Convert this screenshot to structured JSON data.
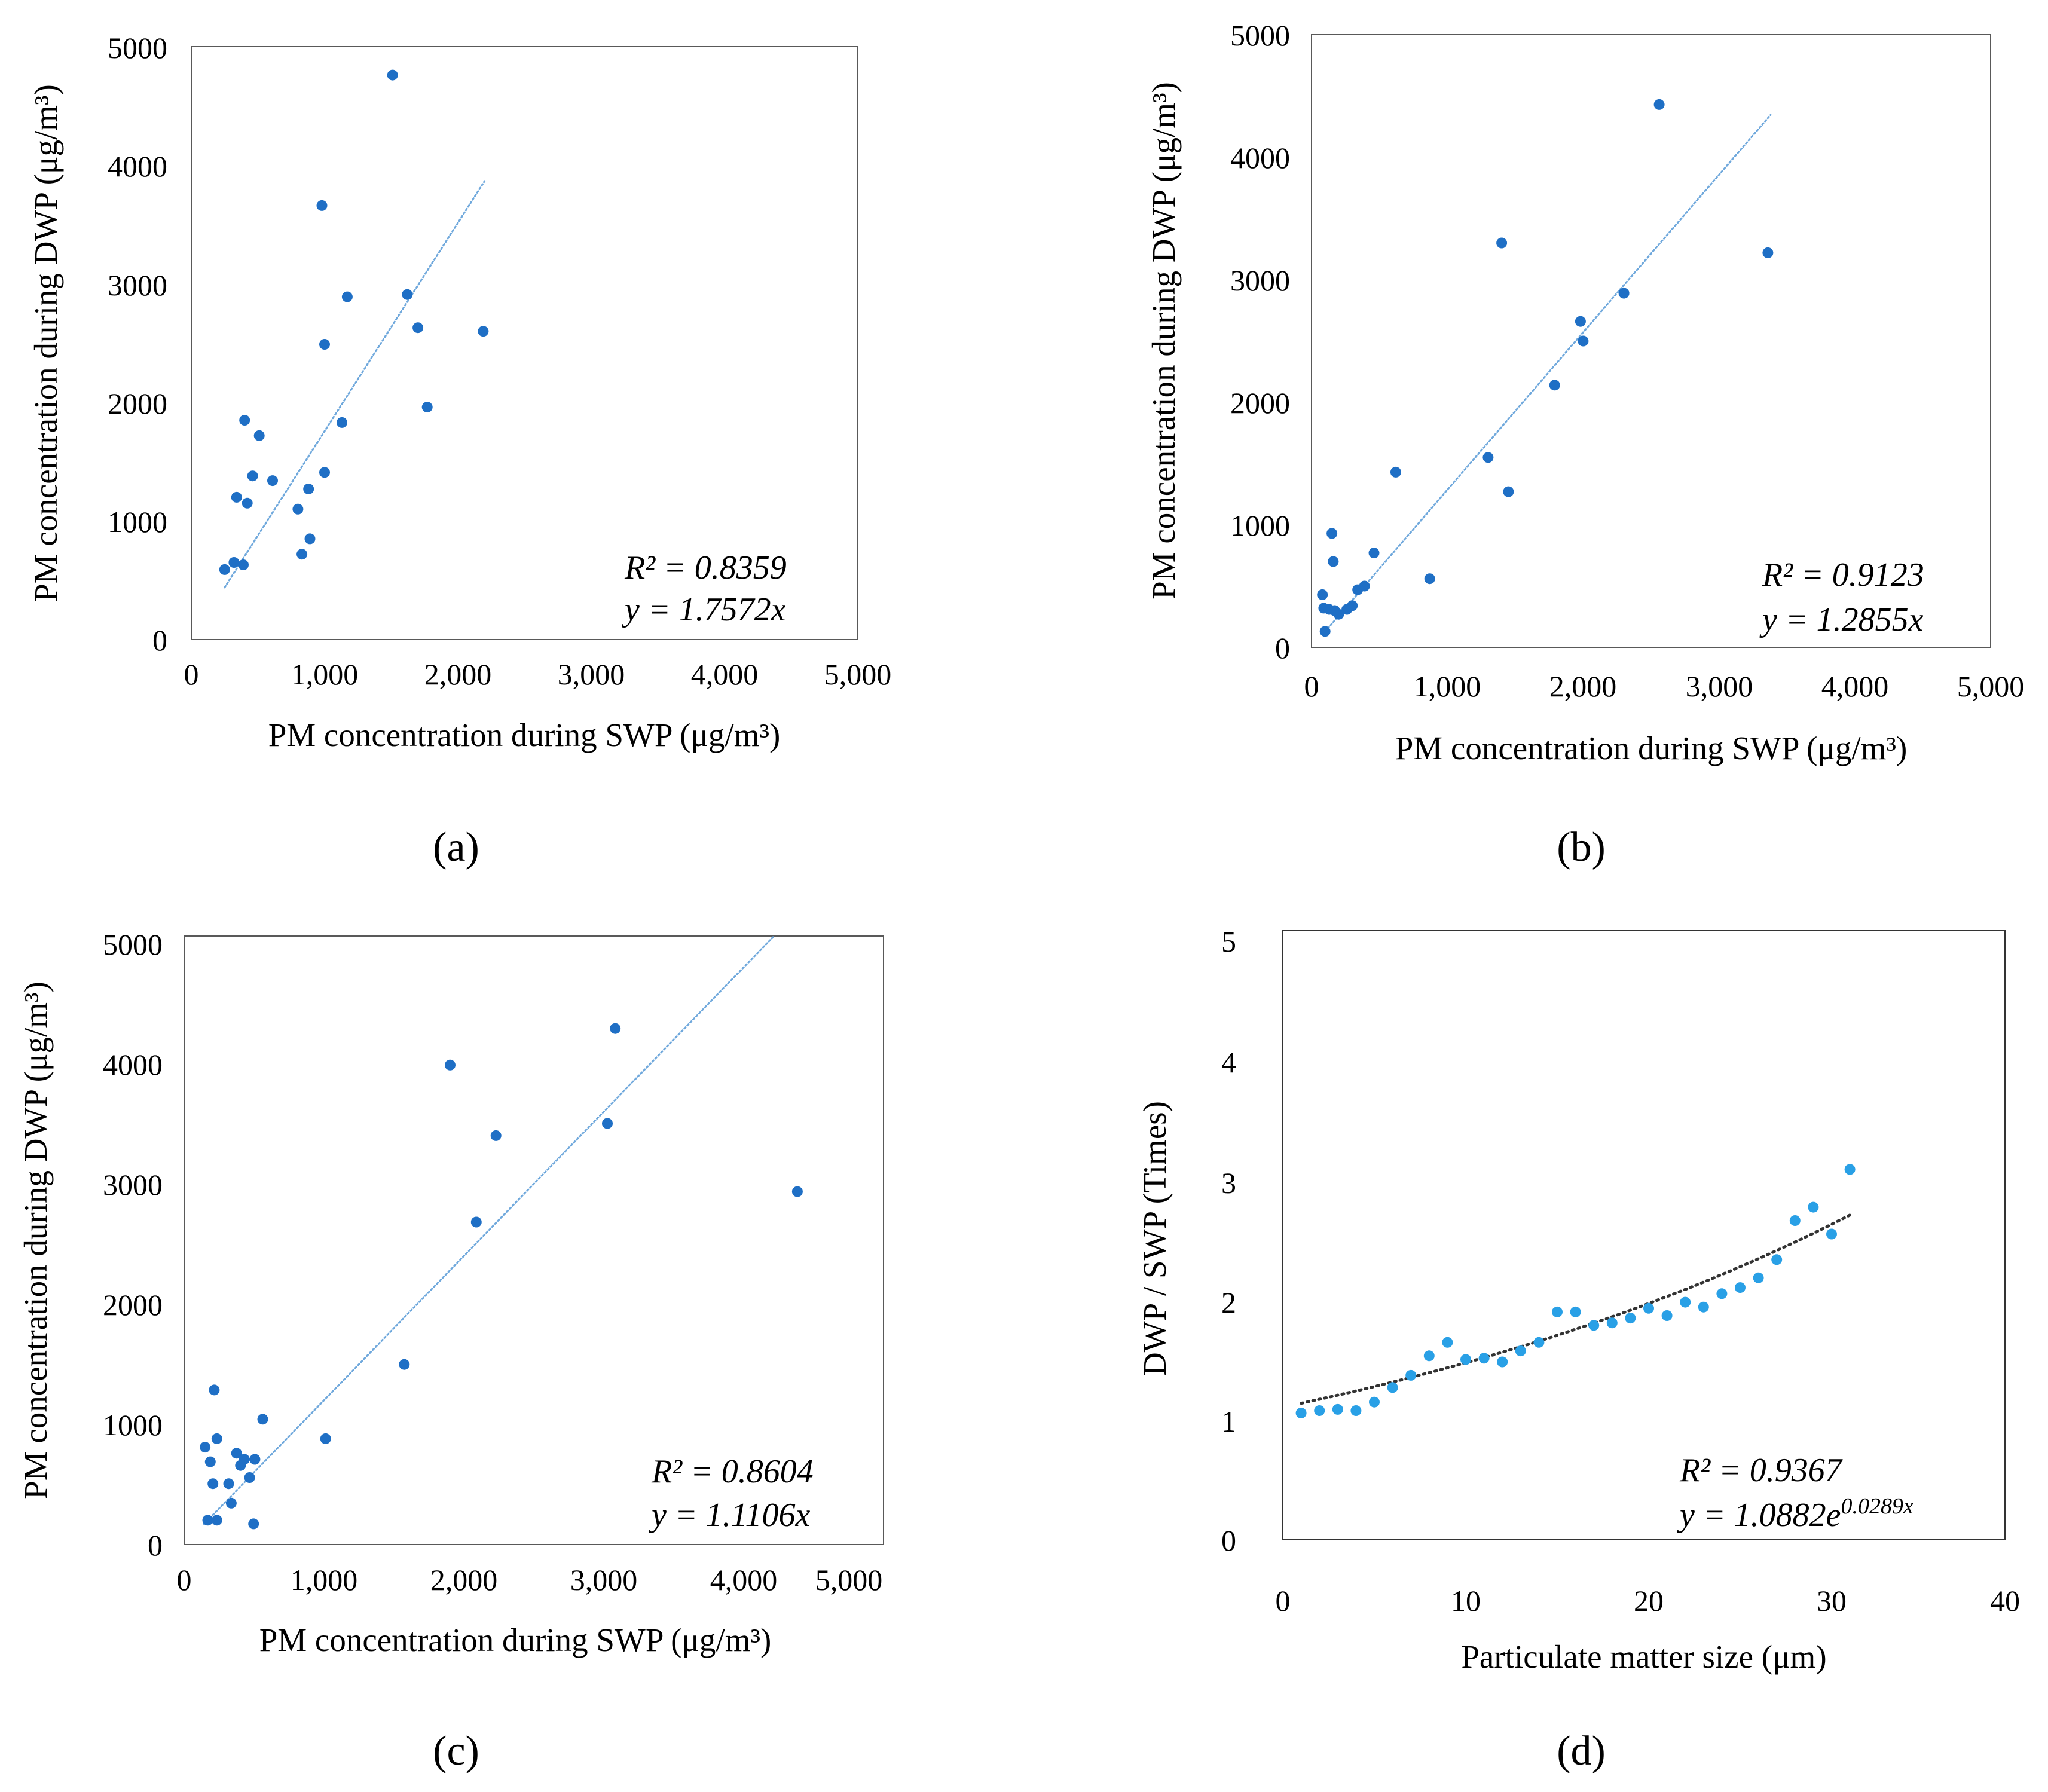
{
  "colors": {
    "points": "#1f6fc5",
    "trend_abcd": "#6fa8dc",
    "trend_d": "#333333",
    "points_d": "#29a0e6",
    "frame": "#595959"
  },
  "chart_data": [
    {
      "type": "scatter",
      "panel_label": "(a)",
      "xlabel": "PM concentration during SWP (μg/m³)",
      "ylabel": "PM concentration during DWP (μg/m³)",
      "xlim": [
        0,
        5000
      ],
      "ylim": [
        0,
        5000
      ],
      "xticks": [
        "0",
        "1,000",
        "2,000",
        "3,000",
        "4,000",
        "5,000"
      ],
      "yticks": [
        "0",
        "1000",
        "2000",
        "3000",
        "4000",
        "5000"
      ],
      "points": [
        [
          250,
          590
        ],
        [
          320,
          650
        ],
        [
          390,
          630
        ],
        [
          340,
          1200
        ],
        [
          420,
          1150
        ],
        [
          400,
          1850
        ],
        [
          460,
          1380
        ],
        [
          510,
          1720
        ],
        [
          610,
          1340
        ],
        [
          800,
          1100
        ],
        [
          830,
          720
        ],
        [
          880,
          1270
        ],
        [
          890,
          850
        ],
        [
          980,
          3660
        ],
        [
          1000,
          2490
        ],
        [
          1000,
          1410
        ],
        [
          1130,
          1830
        ],
        [
          1170,
          2890
        ],
        [
          1510,
          4760
        ],
        [
          1620,
          2910
        ],
        [
          1700,
          2630
        ],
        [
          1770,
          1960
        ],
        [
          2190,
          2600
        ]
      ],
      "trendline": {
        "kind": "linear",
        "slope": 1.7572,
        "x_range": [
          250,
          2200
        ]
      },
      "equation": {
        "r2": "R² = 0.8359",
        "fit": "y = 1.7572x"
      },
      "grid": false
    },
    {
      "type": "scatter",
      "panel_label": "(b)",
      "xlabel": "PM concentration during SWP (μg/m³)",
      "ylabel": "PM concentration during DWP (μg/m³)",
      "xlim": [
        0,
        5000
      ],
      "ylim": [
        0,
        5000
      ],
      "xticks": [
        "0",
        "1,000",
        "2,000",
        "3,000",
        "4,000",
        "5,000"
      ],
      "yticks": [
        "0",
        "1000",
        "2000",
        "3000",
        "4000",
        "5000"
      ],
      "points": [
        [
          80,
          430
        ],
        [
          90,
          320
        ],
        [
          100,
          130
        ],
        [
          130,
          310
        ],
        [
          150,
          930
        ],
        [
          160,
          700
        ],
        [
          170,
          300
        ],
        [
          200,
          270
        ],
        [
          260,
          310
        ],
        [
          300,
          340
        ],
        [
          340,
          470
        ],
        [
          390,
          500
        ],
        [
          460,
          770
        ],
        [
          620,
          1430
        ],
        [
          870,
          560
        ],
        [
          1300,
          1550
        ],
        [
          1400,
          3300
        ],
        [
          1450,
          1270
        ],
        [
          1790,
          2140
        ],
        [
          1980,
          2660
        ],
        [
          2000,
          2500
        ],
        [
          2300,
          2890
        ],
        [
          2560,
          4430
        ],
        [
          3360,
          3220
        ]
      ],
      "trendline": {
        "kind": "linear",
        "slope": 1.2855,
        "x_range": [
          100,
          3380
        ]
      },
      "equation": {
        "r2": "R² = 0.9123",
        "fit": "y = 1.2855x"
      },
      "grid": false
    },
    {
      "type": "scatter",
      "panel_label": "(c)",
      "xlabel": "PM concentration during SWP (μg/m³)",
      "ylabel": "PM concentration during DWP (μg/m³)",
      "xlim": [
        0,
        5000
      ],
      "ylim": [
        0,
        5000
      ],
      "xticks": [
        "0",
        "1,000",
        "2,000",
        "3,000",
        "4,000",
        "5,000"
      ],
      "yticks": [
        "0",
        "1000",
        "2000",
        "3000",
        "4000",
        "5000"
      ],
      "points": [
        [
          160,
          800
        ],
        [
          180,
          200
        ],
        [
          200,
          680
        ],
        [
          220,
          500
        ],
        [
          230,
          1270
        ],
        [
          250,
          870
        ],
        [
          250,
          200
        ],
        [
          340,
          500
        ],
        [
          360,
          340
        ],
        [
          400,
          750
        ],
        [
          430,
          650
        ],
        [
          460,
          700
        ],
        [
          500,
          550
        ],
        [
          530,
          170
        ],
        [
          540,
          700
        ],
        [
          600,
          1030
        ],
        [
          1080,
          870
        ],
        [
          1680,
          1480
        ],
        [
          2030,
          3940
        ],
        [
          2230,
          2650
        ],
        [
          2380,
          3360
        ],
        [
          3230,
          3460
        ],
        [
          3290,
          4240
        ],
        [
          4680,
          2900
        ]
      ],
      "trendline": {
        "kind": "linear",
        "slope": 1.1106,
        "x_range": [
          150,
          4500
        ]
      },
      "equation": {
        "r2": "R² = 0.8604",
        "fit": "y = 1.1106x"
      },
      "grid": false
    },
    {
      "type": "scatter",
      "panel_label": "(d)",
      "xlabel": "Particulate matter size (μm)",
      "ylabel": "DWP / SWP (Times)",
      "xlim": [
        0,
        40
      ],
      "ylim": [
        0,
        5
      ],
      "xticks": [
        "0",
        "10",
        "20",
        "30",
        "40"
      ],
      "yticks": [
        "0",
        "1",
        "2",
        "3",
        "4",
        "5"
      ],
      "points": [
        [
          1,
          1.04
        ],
        [
          2,
          1.06
        ],
        [
          3,
          1.07
        ],
        [
          4,
          1.06
        ],
        [
          5,
          1.13
        ],
        [
          6,
          1.25
        ],
        [
          7,
          1.35
        ],
        [
          8,
          1.51
        ],
        [
          9,
          1.62
        ],
        [
          10,
          1.48
        ],
        [
          11,
          1.49
        ],
        [
          12,
          1.46
        ],
        [
          13,
          1.55
        ],
        [
          14,
          1.62
        ],
        [
          15,
          1.87
        ],
        [
          16,
          1.87
        ],
        [
          17,
          1.76
        ],
        [
          18,
          1.78
        ],
        [
          19,
          1.82
        ],
        [
          20,
          1.9
        ],
        [
          21,
          1.84
        ],
        [
          22,
          1.95
        ],
        [
          23,
          1.91
        ],
        [
          24,
          2.02
        ],
        [
          25,
          2.07
        ],
        [
          26,
          2.15
        ],
        [
          27,
          2.3
        ],
        [
          28,
          2.62
        ],
        [
          29,
          2.73
        ],
        [
          30,
          2.51
        ],
        [
          31,
          3.04
        ]
      ],
      "trendline": {
        "kind": "exponential",
        "a": 1.0882,
        "b": 0.0289,
        "x_range": [
          1,
          31
        ]
      },
      "equation": {
        "r2": "R² = 0.9367",
        "fit_base": "y = 1.0882e",
        "fit_exp": "0.0289x"
      },
      "grid": false
    }
  ]
}
